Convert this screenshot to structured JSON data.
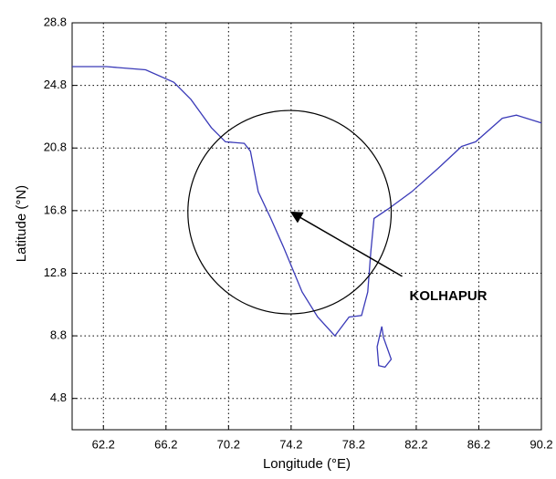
{
  "chart_data": {
    "type": "line",
    "xlabel": "Longitude (°E)",
    "ylabel": "Latitude (°N)",
    "xlim": [
      60.2,
      90.2
    ],
    "ylim": [
      2.8,
      28.8
    ],
    "xticks": [
      62.2,
      66.2,
      70.2,
      74.2,
      78.2,
      82.2,
      86.2,
      90.2
    ],
    "yticks": [
      4.8,
      8.8,
      12.8,
      16.8,
      20.8,
      24.8,
      28.8
    ],
    "grid": true,
    "series": [
      {
        "color": "#3a3ab8",
        "x": [
          60.2,
          62.4,
          64.9,
          66.7,
          67.8,
          69.1,
          70.0,
          71.2,
          71.6,
          72.1,
          72.9,
          73.7,
          74.9,
          75.9,
          77.0,
          77.9,
          78.7,
          79.1,
          79.3,
          79.5,
          80.4,
          81.9,
          83.6,
          85.1,
          86.0,
          87.7,
          88.6,
          90.2,
          null,
          80.0,
          80.1,
          80.6,
          80.2,
          79.8,
          79.7,
          80.0
        ],
        "values": [
          26.0,
          26.0,
          25.8,
          25.0,
          23.9,
          22.1,
          21.2,
          21.1,
          20.6,
          18.0,
          16.3,
          14.5,
          11.6,
          10.0,
          8.8,
          10.0,
          10.1,
          11.6,
          14.2,
          16.3,
          16.9,
          18.0,
          19.5,
          20.9,
          21.2,
          22.7,
          22.9,
          22.4,
          null,
          9.4,
          8.7,
          7.3,
          6.8,
          6.9,
          8.1,
          9.4
        ]
      }
    ],
    "circle": {
      "center": [
        74.1,
        16.7
      ],
      "radius": 6.5,
      "color": "#000000"
    },
    "annotation": {
      "text": "KOLHAPUR",
      "xy": [
        74.2,
        16.7
      ],
      "xytext": [
        81.3,
        12.6
      ]
    }
  }
}
